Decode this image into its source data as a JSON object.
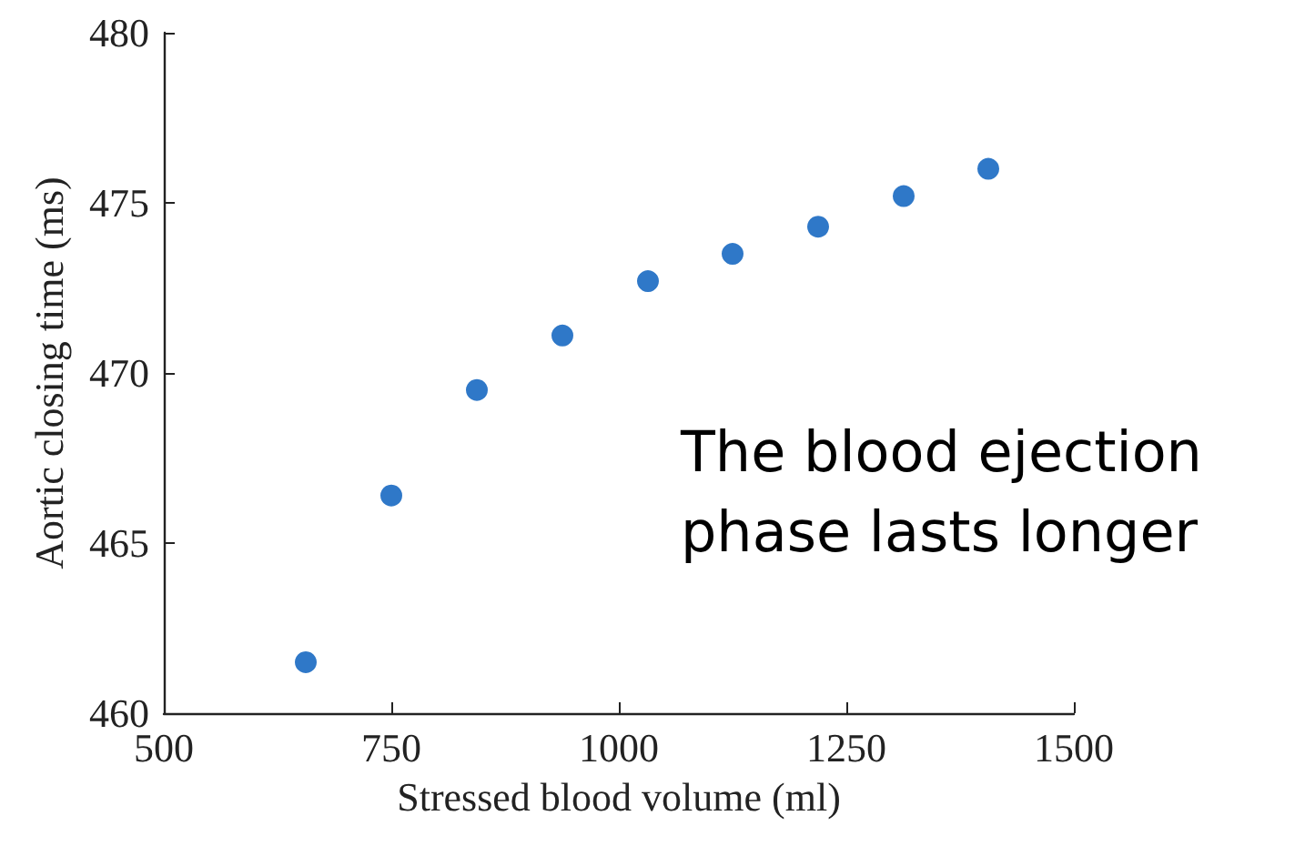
{
  "chart_data": {
    "type": "scatter",
    "xlabel": "Stressed blood volume (ml)",
    "ylabel": "Aortic closing time (ms)",
    "x": [
      656,
      750,
      844,
      938,
      1032,
      1125,
      1219,
      1313,
      1406
    ],
    "series": [
      {
        "color": "#2f78c8",
        "values": [
          461.5,
          466.4,
          469.5,
          471.1,
          472.7,
          473.5,
          474.3,
          475.2,
          476.0
        ]
      }
    ],
    "xlim": [
      500,
      1500
    ],
    "xticks": [
      500,
      750,
      1000,
      1250,
      1500
    ],
    "ylim": [
      460,
      480
    ],
    "yticks": [
      460,
      465,
      470,
      475,
      480
    ],
    "marker": "circle",
    "annotations": [
      "The blood ejection phase lasts longer"
    ]
  }
}
